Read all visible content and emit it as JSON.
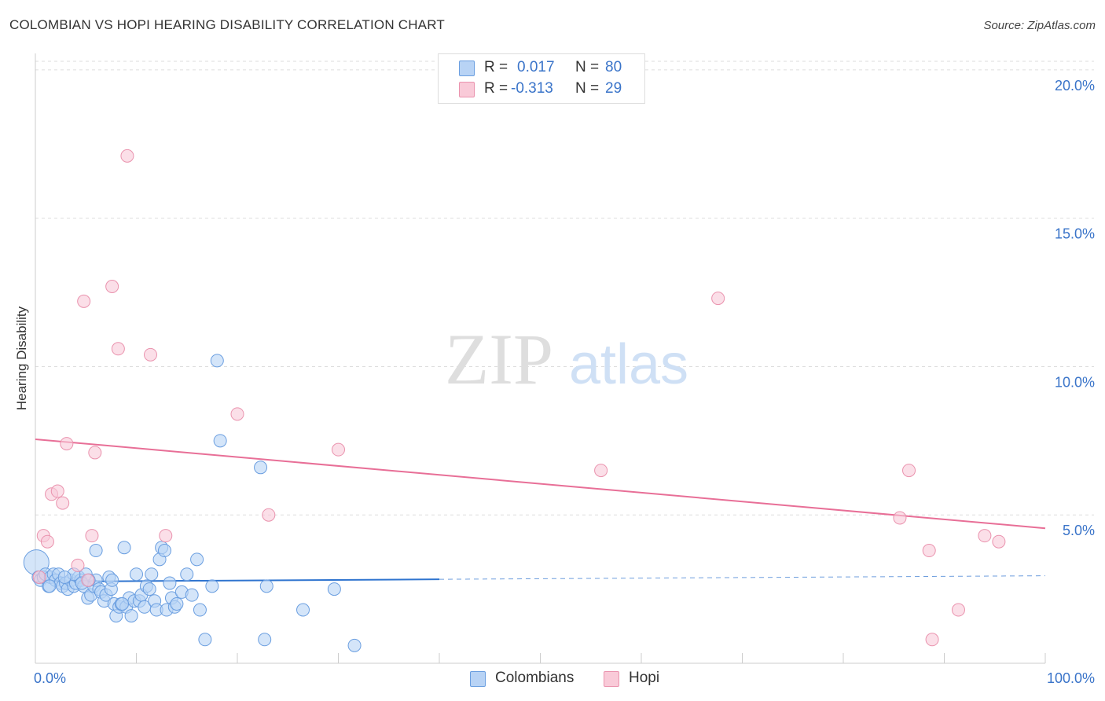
{
  "title": "COLOMBIAN VS HOPI HEARING DISABILITY CORRELATION CHART",
  "source": "Source: ZipAtlas.com",
  "watermark": {
    "zip": "ZIP",
    "atlas": "atlas"
  },
  "colors": {
    "blue_fill": "#b8d3f5",
    "blue_stroke": "#6a9ee0",
    "blue_line": "#2f74cf",
    "pink_fill": "#f9cad8",
    "pink_stroke": "#ea93ae",
    "pink_line": "#e86f97",
    "axis_text": "#3a74c9",
    "grid": "#dddddd"
  },
  "legend_top": {
    "rows": [
      {
        "r_label": "R =",
        "r_value": "0.017",
        "n_label": "N =",
        "n_value": "80"
      },
      {
        "r_label": "R =",
        "r_value": "-0.313",
        "n_label": "N =",
        "n_value": "29"
      }
    ]
  },
  "legend_bottom": {
    "items": [
      "Colombians",
      "Hopi"
    ]
  },
  "chart_data": {
    "type": "scatter",
    "title": "COLOMBIAN VS HOPI HEARING DISABILITY CORRELATION CHART",
    "xlabel": "",
    "ylabel": "Hearing Disability",
    "xlim": [
      0,
      100
    ],
    "ylim": [
      0,
      20.5
    ],
    "x_tick_labels": [
      {
        "value": 0,
        "label": "0.0%"
      },
      {
        "value": 100,
        "label": "100.0%"
      }
    ],
    "y_ticks": [
      {
        "value": 5,
        "label": "5.0%"
      },
      {
        "value": 10,
        "label": "10.0%"
      },
      {
        "value": 15,
        "label": "15.0%"
      },
      {
        "value": 20,
        "label": "20.0%"
      }
    ],
    "series": [
      {
        "name": "Colombians",
        "R": 0.017,
        "N": 80,
        "trend": {
          "x0": 0,
          "y0": 2.75,
          "x1": 100,
          "y1": 2.95,
          "solid_until_x": 40
        },
        "points": [
          [
            0.1,
            3.4
          ],
          [
            0.3,
            2.9
          ],
          [
            0.5,
            2.8
          ],
          [
            0.8,
            2.9
          ],
          [
            1.0,
            3.0
          ],
          [
            1.3,
            2.6
          ],
          [
            1.5,
            2.9
          ],
          [
            1.8,
            3.0
          ],
          [
            2.0,
            2.8
          ],
          [
            2.3,
            3.0
          ],
          [
            2.5,
            2.7
          ],
          [
            2.7,
            2.6
          ],
          [
            3.0,
            2.7
          ],
          [
            3.2,
            2.5
          ],
          [
            3.5,
            2.8
          ],
          [
            3.8,
            2.6
          ],
          [
            4.0,
            2.7
          ],
          [
            4.3,
            2.9
          ],
          [
            4.5,
            2.8
          ],
          [
            4.8,
            2.6
          ],
          [
            5.0,
            3.0
          ],
          [
            5.2,
            2.2
          ],
          [
            5.5,
            2.3
          ],
          [
            5.8,
            2.6
          ],
          [
            6.0,
            2.8
          ],
          [
            6.3,
            2.5
          ],
          [
            6.5,
            2.4
          ],
          [
            6.8,
            2.1
          ],
          [
            7.0,
            2.3
          ],
          [
            7.3,
            2.9
          ],
          [
            7.5,
            2.5
          ],
          [
            7.8,
            2.0
          ],
          [
            8.0,
            1.6
          ],
          [
            8.3,
            1.9
          ],
          [
            8.5,
            2.0
          ],
          [
            8.8,
            3.9
          ],
          [
            9.0,
            1.9
          ],
          [
            9.3,
            2.2
          ],
          [
            9.5,
            1.6
          ],
          [
            9.8,
            2.1
          ],
          [
            10.0,
            3.0
          ],
          [
            10.3,
            2.1
          ],
          [
            10.5,
            2.3
          ],
          [
            10.8,
            1.9
          ],
          [
            11.0,
            2.6
          ],
          [
            11.3,
            2.5
          ],
          [
            11.5,
            3.0
          ],
          [
            11.8,
            2.1
          ],
          [
            12.0,
            1.8
          ],
          [
            12.3,
            3.5
          ],
          [
            12.5,
            3.9
          ],
          [
            12.8,
            3.8
          ],
          [
            13.0,
            1.8
          ],
          [
            13.3,
            2.7
          ],
          [
            13.5,
            2.2
          ],
          [
            13.8,
            1.9
          ],
          [
            14.0,
            2.0
          ],
          [
            14.5,
            2.4
          ],
          [
            15.0,
            3.0
          ],
          [
            15.5,
            2.3
          ],
          [
            16.0,
            3.5
          ],
          [
            16.3,
            1.8
          ],
          [
            16.8,
            0.8
          ],
          [
            17.5,
            2.6
          ],
          [
            18.0,
            10.2
          ],
          [
            18.3,
            7.5
          ],
          [
            22.3,
            6.6
          ],
          [
            22.7,
            0.8
          ],
          [
            22.9,
            2.6
          ],
          [
            26.5,
            1.8
          ],
          [
            29.6,
            2.5
          ],
          [
            31.6,
            0.6
          ],
          [
            6.0,
            3.8
          ],
          [
            3.8,
            3.0
          ],
          [
            1.4,
            2.6
          ],
          [
            2.9,
            2.9
          ],
          [
            4.6,
            2.7
          ],
          [
            5.3,
            2.8
          ],
          [
            7.6,
            2.8
          ],
          [
            8.6,
            2.0
          ]
        ]
      },
      {
        "name": "Hopi",
        "R": -0.313,
        "N": 29,
        "trend": {
          "x0": 0,
          "y0": 7.55,
          "x1": 100,
          "y1": 4.55
        },
        "points": [
          [
            0.4,
            2.9
          ],
          [
            0.8,
            4.3
          ],
          [
            1.2,
            4.1
          ],
          [
            1.6,
            5.7
          ],
          [
            2.2,
            5.8
          ],
          [
            2.7,
            5.4
          ],
          [
            3.1,
            7.4
          ],
          [
            4.2,
            3.3
          ],
          [
            4.8,
            12.2
          ],
          [
            5.2,
            2.8
          ],
          [
            5.6,
            4.3
          ],
          [
            5.9,
            7.1
          ],
          [
            7.6,
            12.7
          ],
          [
            8.2,
            10.6
          ],
          [
            9.1,
            17.1
          ],
          [
            11.4,
            10.4
          ],
          [
            12.9,
            4.3
          ],
          [
            20.0,
            8.4
          ],
          [
            23.1,
            5.0
          ],
          [
            30.0,
            7.2
          ],
          [
            56.0,
            6.5
          ],
          [
            67.6,
            12.3
          ],
          [
            85.6,
            4.9
          ],
          [
            86.5,
            6.5
          ],
          [
            88.5,
            3.8
          ],
          [
            88.8,
            0.8
          ],
          [
            91.4,
            1.8
          ],
          [
            94.0,
            4.3
          ],
          [
            95.4,
            4.1
          ]
        ]
      }
    ]
  }
}
